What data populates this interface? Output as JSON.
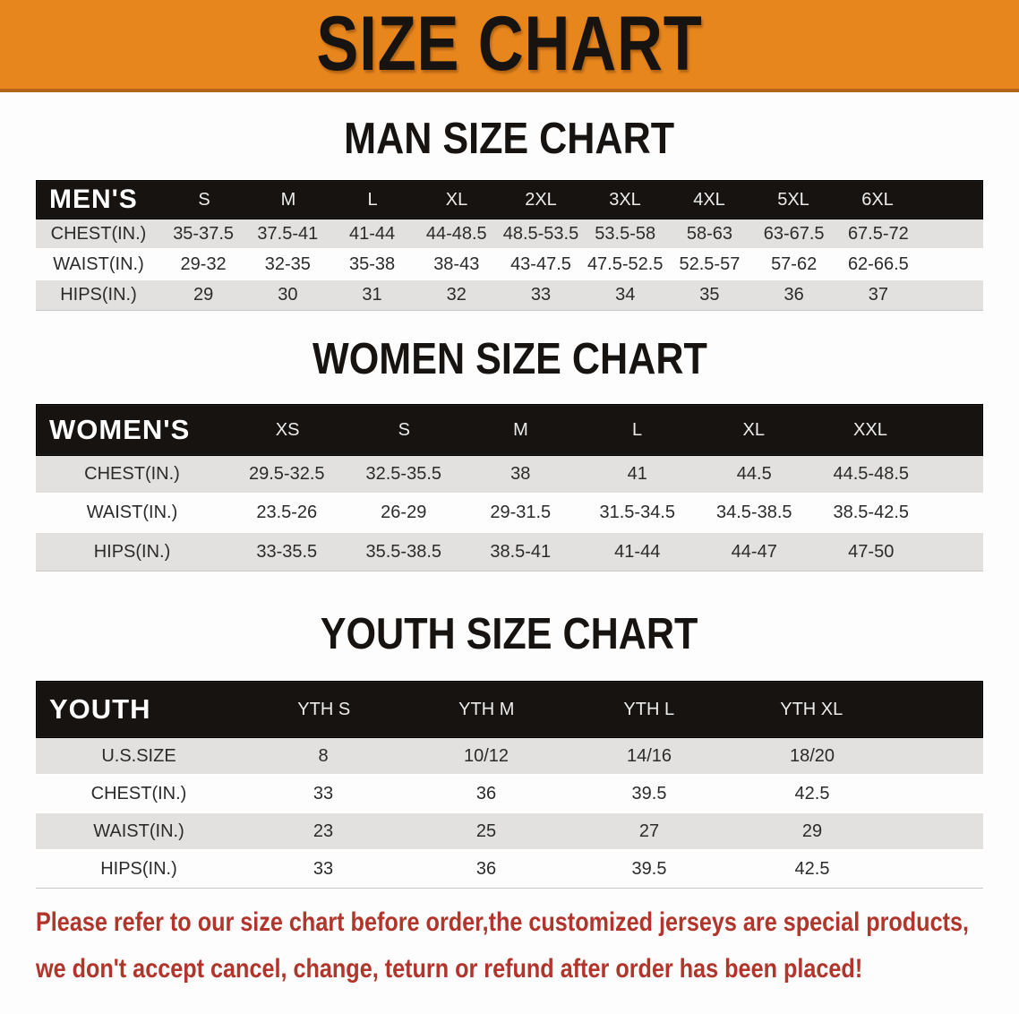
{
  "banner": {
    "title": "SIZE CHART"
  },
  "colors": {
    "banner_bg": "#E8861E",
    "banner_border": "#B3661A",
    "header_bar": "#171310",
    "row_alt_gray": "#E2E1DF",
    "disclaimer_text": "#B2352C"
  },
  "men": {
    "heading": "MAN SIZE CHART",
    "table": {
      "header_label": "MEN'S",
      "sizes": [
        "S",
        "M",
        "L",
        "XL",
        "2XL",
        "3XL",
        "4XL",
        "5XL",
        "6XL"
      ],
      "rows": [
        {
          "label": "CHEST(IN.)",
          "values": [
            "35-37.5",
            "37.5-41",
            "41-44",
            "44-48.5",
            "48.5-53.5",
            "53.5-58",
            "58-63",
            "63-67.5",
            "67.5-72"
          ]
        },
        {
          "label": "WAIST(IN.)",
          "values": [
            "29-32",
            "32-35",
            "35-38",
            "38-43",
            "43-47.5",
            "47.5-52.5",
            "52.5-57",
            "57-62",
            "62-66.5"
          ]
        },
        {
          "label": "HIPS(IN.)",
          "values": [
            "29",
            "30",
            "31",
            "32",
            "33",
            "34",
            "35",
            "36",
            "37"
          ]
        }
      ]
    }
  },
  "women": {
    "heading": "WOMEN SIZE CHART",
    "table": {
      "header_label": "WOMEN'S",
      "sizes": [
        "XS",
        "S",
        "M",
        "L",
        "XL",
        "XXL"
      ],
      "rows": [
        {
          "label": "CHEST(IN.)",
          "values": [
            "29.5-32.5",
            "32.5-35.5",
            "38",
            "41",
            "44.5",
            "44.5-48.5"
          ]
        },
        {
          "label": "WAIST(IN.)",
          "values": [
            "23.5-26",
            "26-29",
            "29-31.5",
            "31.5-34.5",
            "34.5-38.5",
            "38.5-42.5"
          ]
        },
        {
          "label": "HIPS(IN.)",
          "values": [
            "33-35.5",
            "35.5-38.5",
            "38.5-41",
            "41-44",
            "44-47",
            "47-50"
          ]
        }
      ]
    }
  },
  "youth": {
    "heading": "YOUTH SIZE CHART",
    "table": {
      "header_label": "YOUTH",
      "sizes": [
        "YTH S",
        "YTH M",
        "YTH L",
        "YTH XL"
      ],
      "rows": [
        {
          "label": "U.S.SIZE",
          "values": [
            "8",
            "10/12",
            "14/16",
            "18/20"
          ]
        },
        {
          "label": "CHEST(IN.)",
          "values": [
            "33",
            "36",
            "39.5",
            "42.5"
          ]
        },
        {
          "label": "WAIST(IN.)",
          "values": [
            "23",
            "25",
            "27",
            "29"
          ]
        },
        {
          "label": "HIPS(IN.)",
          "values": [
            "33",
            "36",
            "39.5",
            "42.5"
          ]
        }
      ]
    }
  },
  "disclaimer": {
    "line1": "Please refer to our size chart before order,the customized jerseys are special products,",
    "line2": "we don't accept cancel, change, teturn or refund after order has been placed!"
  }
}
